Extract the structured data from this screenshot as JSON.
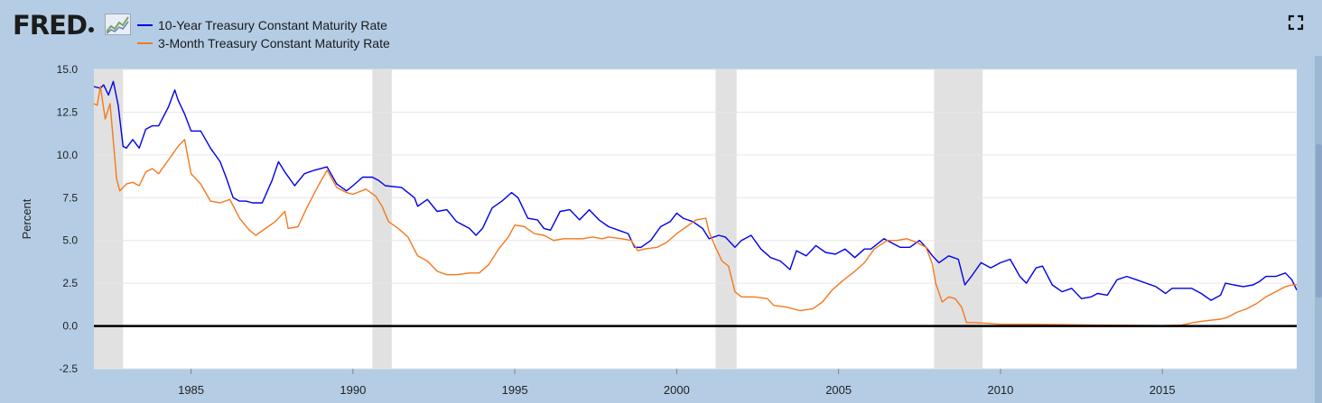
{
  "brand": {
    "name": "FRED"
  },
  "legend": [
    {
      "label": "10-Year Treasury Constant Maturity Rate",
      "color": "#0000e6"
    },
    {
      "label": "3-Month Treasury Constant Maturity Rate",
      "color": "#f5781e"
    }
  ],
  "icons": {
    "fullscreen": "fullscreen-icon",
    "logo_graph": "line-graph-icon"
  },
  "chart_data": {
    "type": "line",
    "ylabel": "Percent",
    "xlabel": "",
    "ylim": [
      -2.5,
      15
    ],
    "xlim": [
      1982.0,
      2019.15
    ],
    "yticks": [
      "15.0",
      "12.5",
      "10.0",
      "7.5",
      "5.0",
      "2.5",
      "0.0",
      "-2.5"
    ],
    "xticks": [
      "1985",
      "1990",
      "1995",
      "2000",
      "2005",
      "2010",
      "2015"
    ],
    "grid": true,
    "zero_line": true,
    "recessions": [
      [
        1982.0,
        1982.9
      ],
      [
        1990.6,
        1991.2
      ],
      [
        2001.2,
        2001.85
      ],
      [
        2007.95,
        2009.45
      ]
    ],
    "series": [
      {
        "name": "10-Year Treasury Constant Maturity Rate",
        "color": "#0000e6",
        "points": [
          [
            1982.0,
            14.0
          ],
          [
            1982.2,
            13.9
          ],
          [
            1982.3,
            14.1
          ],
          [
            1982.45,
            13.5
          ],
          [
            1982.6,
            14.3
          ],
          [
            1982.75,
            12.9
          ],
          [
            1982.9,
            10.5
          ],
          [
            1983.0,
            10.4
          ],
          [
            1983.2,
            10.9
          ],
          [
            1983.4,
            10.4
          ],
          [
            1983.6,
            11.5
          ],
          [
            1983.8,
            11.7
          ],
          [
            1984.0,
            11.7
          ],
          [
            1984.3,
            12.8
          ],
          [
            1984.5,
            13.8
          ],
          [
            1984.6,
            13.2
          ],
          [
            1984.8,
            12.4
          ],
          [
            1985.0,
            11.4
          ],
          [
            1985.3,
            11.4
          ],
          [
            1985.6,
            10.4
          ],
          [
            1985.9,
            9.6
          ],
          [
            1986.1,
            8.6
          ],
          [
            1986.3,
            7.5
          ],
          [
            1986.5,
            7.3
          ],
          [
            1986.7,
            7.3
          ],
          [
            1986.9,
            7.2
          ],
          [
            1987.2,
            7.2
          ],
          [
            1987.5,
            8.5
          ],
          [
            1987.7,
            9.6
          ],
          [
            1987.9,
            9.0
          ],
          [
            1988.2,
            8.2
          ],
          [
            1988.5,
            8.9
          ],
          [
            1988.8,
            9.1
          ],
          [
            1989.2,
            9.3
          ],
          [
            1989.5,
            8.3
          ],
          [
            1989.8,
            7.9
          ],
          [
            1990.0,
            8.2
          ],
          [
            1990.3,
            8.7
          ],
          [
            1990.6,
            8.7
          ],
          [
            1990.8,
            8.5
          ],
          [
            1991.0,
            8.2
          ],
          [
            1991.5,
            8.1
          ],
          [
            1991.9,
            7.5
          ],
          [
            1992.0,
            7.0
          ],
          [
            1992.3,
            7.4
          ],
          [
            1992.6,
            6.7
          ],
          [
            1992.9,
            6.8
          ],
          [
            1993.2,
            6.1
          ],
          [
            1993.6,
            5.7
          ],
          [
            1993.8,
            5.3
          ],
          [
            1994.0,
            5.7
          ],
          [
            1994.3,
            6.9
          ],
          [
            1994.6,
            7.3
          ],
          [
            1994.9,
            7.8
          ],
          [
            1995.1,
            7.5
          ],
          [
            1995.4,
            6.3
          ],
          [
            1995.7,
            6.2
          ],
          [
            1995.9,
            5.7
          ],
          [
            1996.1,
            5.6
          ],
          [
            1996.4,
            6.7
          ],
          [
            1996.7,
            6.8
          ],
          [
            1997.0,
            6.2
          ],
          [
            1997.3,
            6.8
          ],
          [
            1997.6,
            6.2
          ],
          [
            1997.9,
            5.8
          ],
          [
            1998.2,
            5.6
          ],
          [
            1998.5,
            5.4
          ],
          [
            1998.7,
            4.6
          ],
          [
            1998.9,
            4.6
          ],
          [
            1999.2,
            5.0
          ],
          [
            1999.5,
            5.8
          ],
          [
            1999.8,
            6.1
          ],
          [
            2000.0,
            6.6
          ],
          [
            2000.2,
            6.3
          ],
          [
            2000.5,
            6.1
          ],
          [
            2000.8,
            5.7
          ],
          [
            2001.0,
            5.1
          ],
          [
            2001.3,
            5.3
          ],
          [
            2001.5,
            5.2
          ],
          [
            2001.8,
            4.6
          ],
          [
            2002.0,
            5.0
          ],
          [
            2002.3,
            5.3
          ],
          [
            2002.6,
            4.5
          ],
          [
            2002.9,
            4.0
          ],
          [
            2003.2,
            3.8
          ],
          [
            2003.5,
            3.3
          ],
          [
            2003.7,
            4.4
          ],
          [
            2004.0,
            4.1
          ],
          [
            2004.3,
            4.7
          ],
          [
            2004.6,
            4.3
          ],
          [
            2004.9,
            4.2
          ],
          [
            2005.2,
            4.5
          ],
          [
            2005.5,
            4.0
          ],
          [
            2005.8,
            4.5
          ],
          [
            2006.0,
            4.5
          ],
          [
            2006.4,
            5.1
          ],
          [
            2006.7,
            4.8
          ],
          [
            2006.9,
            4.6
          ],
          [
            2007.2,
            4.6
          ],
          [
            2007.5,
            5.0
          ],
          [
            2007.7,
            4.6
          ],
          [
            2007.9,
            4.1
          ],
          [
            2008.1,
            3.7
          ],
          [
            2008.4,
            4.1
          ],
          [
            2008.7,
            3.9
          ],
          [
            2008.9,
            2.4
          ],
          [
            2009.1,
            2.9
          ],
          [
            2009.4,
            3.7
          ],
          [
            2009.7,
            3.4
          ],
          [
            2010.0,
            3.7
          ],
          [
            2010.3,
            3.9
          ],
          [
            2010.6,
            2.9
          ],
          [
            2010.8,
            2.5
          ],
          [
            2011.1,
            3.4
          ],
          [
            2011.3,
            3.5
          ],
          [
            2011.6,
            2.4
          ],
          [
            2011.9,
            2.0
          ],
          [
            2012.2,
            2.2
          ],
          [
            2012.5,
            1.6
          ],
          [
            2012.8,
            1.7
          ],
          [
            2013.0,
            1.9
          ],
          [
            2013.3,
            1.8
          ],
          [
            2013.6,
            2.7
          ],
          [
            2013.9,
            2.9
          ],
          [
            2014.2,
            2.7
          ],
          [
            2014.5,
            2.5
          ],
          [
            2014.8,
            2.3
          ],
          [
            2015.1,
            1.9
          ],
          [
            2015.3,
            2.2
          ],
          [
            2015.6,
            2.2
          ],
          [
            2015.9,
            2.2
          ],
          [
            2016.2,
            1.9
          ],
          [
            2016.5,
            1.5
          ],
          [
            2016.8,
            1.8
          ],
          [
            2016.95,
            2.5
          ],
          [
            2017.2,
            2.4
          ],
          [
            2017.5,
            2.3
          ],
          [
            2017.8,
            2.4
          ],
          [
            2018.0,
            2.6
          ],
          [
            2018.2,
            2.9
          ],
          [
            2018.5,
            2.9
          ],
          [
            2018.8,
            3.1
          ],
          [
            2019.0,
            2.7
          ],
          [
            2019.15,
            2.1
          ]
        ]
      },
      {
        "name": "3-Month Treasury Constant Maturity Rate",
        "color": "#f5781e",
        "points": [
          [
            1982.0,
            13.0
          ],
          [
            1982.1,
            12.9
          ],
          [
            1982.2,
            14.0
          ],
          [
            1982.35,
            12.1
          ],
          [
            1982.5,
            13.0
          ],
          [
            1982.6,
            10.8
          ],
          [
            1982.7,
            8.6
          ],
          [
            1982.8,
            7.9
          ],
          [
            1983.0,
            8.3
          ],
          [
            1983.2,
            8.4
          ],
          [
            1983.4,
            8.2
          ],
          [
            1983.6,
            9.0
          ],
          [
            1983.8,
            9.2
          ],
          [
            1984.0,
            8.9
          ],
          [
            1984.3,
            9.7
          ],
          [
            1984.6,
            10.5
          ],
          [
            1984.8,
            10.9
          ],
          [
            1985.0,
            8.9
          ],
          [
            1985.3,
            8.3
          ],
          [
            1985.6,
            7.3
          ],
          [
            1985.9,
            7.2
          ],
          [
            1986.2,
            7.4
          ],
          [
            1986.5,
            6.3
          ],
          [
            1986.8,
            5.6
          ],
          [
            1987.0,
            5.3
          ],
          [
            1987.3,
            5.7
          ],
          [
            1987.6,
            6.1
          ],
          [
            1987.9,
            6.7
          ],
          [
            1988.0,
            5.7
          ],
          [
            1988.3,
            5.8
          ],
          [
            1988.6,
            7.0
          ],
          [
            1988.9,
            8.1
          ],
          [
            1989.2,
            9.1
          ],
          [
            1989.5,
            8.1
          ],
          [
            1989.8,
            7.8
          ],
          [
            1990.0,
            7.7
          ],
          [
            1990.4,
            8.0
          ],
          [
            1990.7,
            7.6
          ],
          [
            1990.9,
            7.0
          ],
          [
            1991.1,
            6.1
          ],
          [
            1991.4,
            5.7
          ],
          [
            1991.7,
            5.2
          ],
          [
            1992.0,
            4.1
          ],
          [
            1992.3,
            3.8
          ],
          [
            1992.6,
            3.2
          ],
          [
            1992.9,
            3.0
          ],
          [
            1993.2,
            3.0
          ],
          [
            1993.6,
            3.1
          ],
          [
            1993.9,
            3.1
          ],
          [
            1994.2,
            3.6
          ],
          [
            1994.5,
            4.5
          ],
          [
            1994.8,
            5.2
          ],
          [
            1995.0,
            5.9
          ],
          [
            1995.3,
            5.8
          ],
          [
            1995.6,
            5.4
          ],
          [
            1995.9,
            5.3
          ],
          [
            1996.2,
            5.0
          ],
          [
            1996.5,
            5.1
          ],
          [
            1996.8,
            5.1
          ],
          [
            1997.1,
            5.1
          ],
          [
            1997.4,
            5.2
          ],
          [
            1997.7,
            5.1
          ],
          [
            1997.9,
            5.2
          ],
          [
            1998.3,
            5.1
          ],
          [
            1998.6,
            5.0
          ],
          [
            1998.8,
            4.4
          ],
          [
            1999.0,
            4.5
          ],
          [
            1999.4,
            4.6
          ],
          [
            1999.7,
            4.9
          ],
          [
            2000.0,
            5.4
          ],
          [
            2000.3,
            5.8
          ],
          [
            2000.6,
            6.2
          ],
          [
            2000.9,
            6.3
          ],
          [
            2001.0,
            5.5
          ],
          [
            2001.2,
            4.6
          ],
          [
            2001.4,
            3.8
          ],
          [
            2001.6,
            3.5
          ],
          [
            2001.8,
            2.0
          ],
          [
            2002.0,
            1.7
          ],
          [
            2002.4,
            1.7
          ],
          [
            2002.8,
            1.6
          ],
          [
            2003.0,
            1.2
          ],
          [
            2003.4,
            1.1
          ],
          [
            2003.8,
            0.9
          ],
          [
            2004.2,
            1.0
          ],
          [
            2004.5,
            1.4
          ],
          [
            2004.8,
            2.1
          ],
          [
            2005.1,
            2.6
          ],
          [
            2005.5,
            3.2
          ],
          [
            2005.8,
            3.7
          ],
          [
            2006.1,
            4.5
          ],
          [
            2006.5,
            5.0
          ],
          [
            2006.8,
            5.0
          ],
          [
            2007.1,
            5.1
          ],
          [
            2007.4,
            4.9
          ],
          [
            2007.7,
            4.6
          ],
          [
            2007.9,
            3.6
          ],
          [
            2008.0,
            2.5
          ],
          [
            2008.2,
            1.4
          ],
          [
            2008.4,
            1.7
          ],
          [
            2008.6,
            1.6
          ],
          [
            2008.8,
            1.1
          ],
          [
            2008.95,
            0.2
          ],
          [
            2009.2,
            0.2
          ],
          [
            2009.6,
            0.15
          ],
          [
            2010.0,
            0.1
          ],
          [
            2011.0,
            0.1
          ],
          [
            2012.0,
            0.08
          ],
          [
            2013.0,
            0.05
          ],
          [
            2014.0,
            0.04
          ],
          [
            2015.0,
            0.02
          ],
          [
            2015.6,
            0.05
          ],
          [
            2015.95,
            0.2
          ],
          [
            2016.3,
            0.3
          ],
          [
            2016.8,
            0.4
          ],
          [
            2017.0,
            0.5
          ],
          [
            2017.3,
            0.8
          ],
          [
            2017.6,
            1.0
          ],
          [
            2017.9,
            1.3
          ],
          [
            2018.2,
            1.7
          ],
          [
            2018.5,
            2.0
          ],
          [
            2018.8,
            2.3
          ],
          [
            2019.0,
            2.4
          ],
          [
            2019.15,
            2.4
          ]
        ]
      }
    ]
  }
}
